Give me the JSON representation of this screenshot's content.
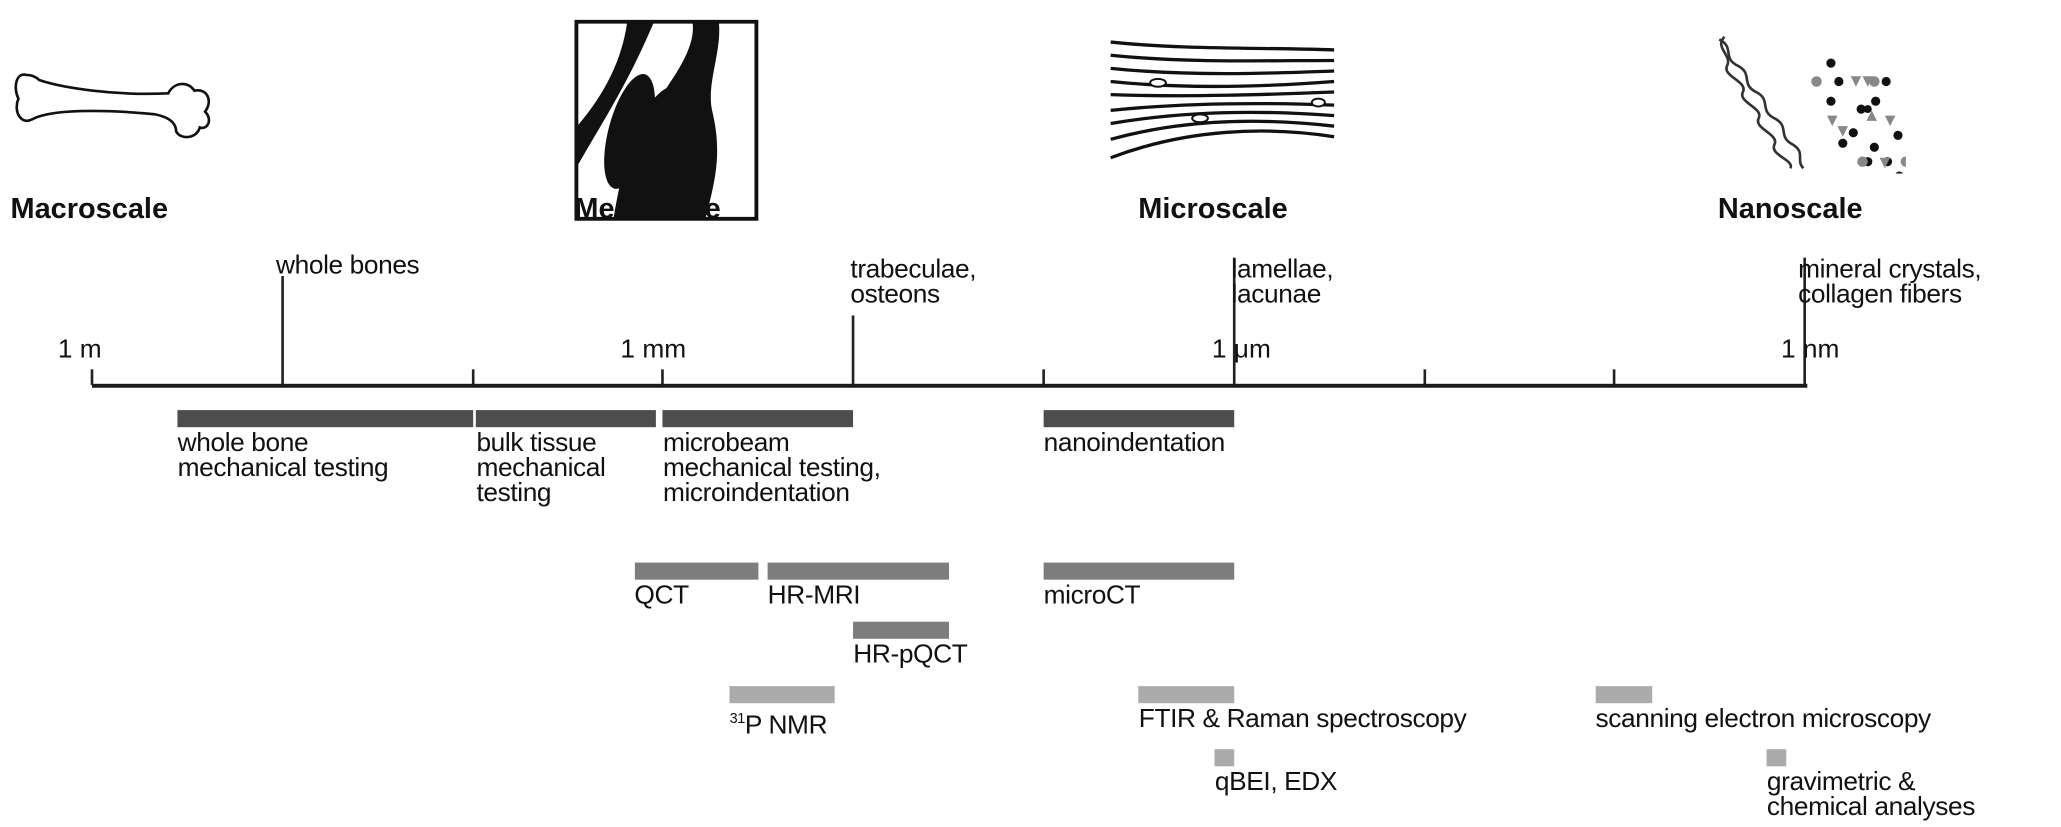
{
  "scales": [
    {
      "name": "Macroscale",
      "icon": "bone-icon"
    },
    {
      "name": "Mesoscale",
      "icon": "trabecular-bone-icon"
    },
    {
      "name": "Microscale",
      "icon": "lamellae-icon"
    },
    {
      "name": "Nanoscale",
      "icon": "collagen-mineral-icon"
    }
  ],
  "axis": {
    "scale": "log10 length in meters, one tick per decade, decreasing left to right",
    "range_log10_m": [
      0,
      -9
    ],
    "unit_labels": [
      {
        "text": "1 m",
        "log10_m": 0
      },
      {
        "text": "1 mm",
        "log10_m": -3
      },
      {
        "text": "1 μm",
        "log10_m": -6
      },
      {
        "text": "1 nm",
        "log10_m": -9
      }
    ]
  },
  "structures": [
    {
      "text": "whole bones",
      "log10_m": -1
    },
    {
      "text": "trabeculae,\nosteons",
      "log10_m": -4
    },
    {
      "text": "lamellae,\nlacunae",
      "log10_m": -6
    },
    {
      "text": "mineral crystals,\ncollagen fibers",
      "log10_m": -9
    }
  ],
  "colors": {
    "dark": "#4d4d4d",
    "mid": "#7d7d7d",
    "light": "#ababab",
    "axis": "#1a1a1a"
  },
  "methods": [
    {
      "label": "whole bone\nmechanical testing",
      "range_log10_m": [
        -0.45,
        -2.0
      ],
      "shade": "dark"
    },
    {
      "label": "bulk tissue\nmechanical\ntesting",
      "range_log10_m": [
        -2.02,
        -2.96
      ],
      "shade": "dark"
    },
    {
      "label": "microbeam\nmechanical testing,\nmicroindentation",
      "range_log10_m": [
        -3.0,
        -4.0
      ],
      "shade": "dark"
    },
    {
      "label": "nanoindentation",
      "range_log10_m": [
        -5.0,
        -6.0
      ],
      "shade": "dark"
    },
    {
      "label": "QCT",
      "range_log10_m": [
        -2.85,
        -3.5
      ],
      "shade": "mid"
    },
    {
      "label": "HR-MRI",
      "range_log10_m": [
        -3.55,
        -4.5
      ],
      "shade": "mid"
    },
    {
      "label": "microCT",
      "range_log10_m": [
        -5.0,
        -6.0
      ],
      "shade": "mid"
    },
    {
      "label": "HR-pQCT",
      "range_log10_m": [
        -4.0,
        -4.5
      ],
      "shade": "mid"
    },
    {
      "label_sup": "31",
      "label": "P NMR",
      "range_log10_m": [
        -3.35,
        -3.9
      ],
      "shade": "light"
    },
    {
      "label": "FTIR & Raman spectroscopy",
      "range_log10_m": [
        -5.5,
        -6.0
      ],
      "shade": "light"
    },
    {
      "label": "scanning electron microscopy",
      "range_log10_m": [
        -7.9,
        -8.2
      ],
      "shade": "light"
    },
    {
      "label": "qBEI, EDX",
      "range_log10_m": [
        -5.9,
        -6.0
      ],
      "shade": "light"
    },
    {
      "label": "gravimetric &\nchemical analyses",
      "range_log10_m": [
        -8.8,
        -8.9
      ],
      "shade": "light"
    }
  ]
}
